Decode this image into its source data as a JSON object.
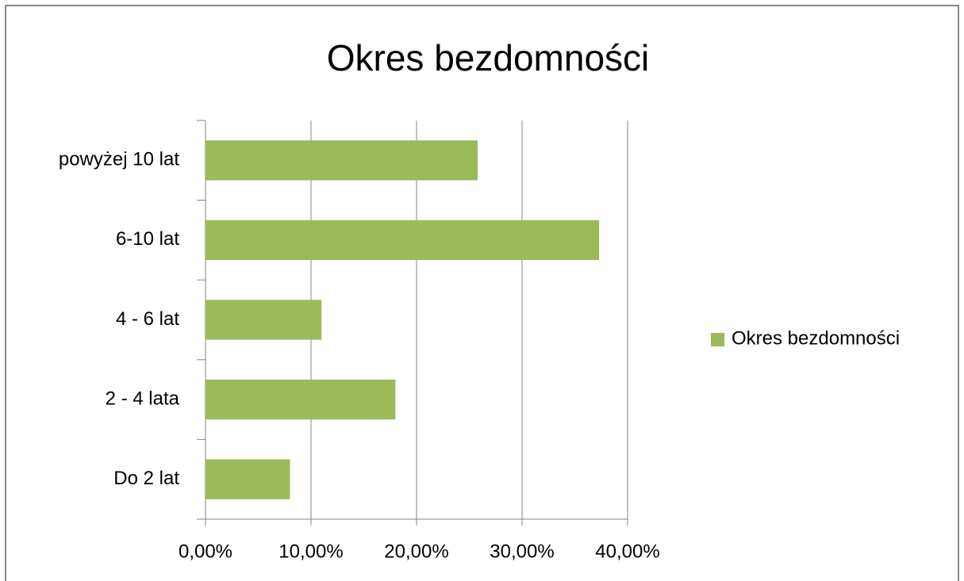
{
  "chart_data": {
    "type": "bar",
    "orientation": "horizontal",
    "title": "Okres bezdomności",
    "categories": [
      "Do 2 lat",
      "2 - 4 lata",
      "4 - 6 lat",
      "6-10 lat",
      "powyżej 10 lat"
    ],
    "series": [
      {
        "name": "Okres bezdomności",
        "color": "#9bbb59",
        "values": [
          8,
          18,
          11,
          37.3,
          25.8
        ]
      }
    ],
    "xlim": [
      0,
      40
    ],
    "xticks": [
      {
        "value": 0,
        "label": "0,00%"
      },
      {
        "value": 10,
        "label": "10,00%"
      },
      {
        "value": 20,
        "label": "20,00%"
      },
      {
        "value": 30,
        "label": "30,00%"
      },
      {
        "value": 40,
        "label": "40,00%"
      }
    ],
    "grid": true,
    "legend": "right"
  }
}
